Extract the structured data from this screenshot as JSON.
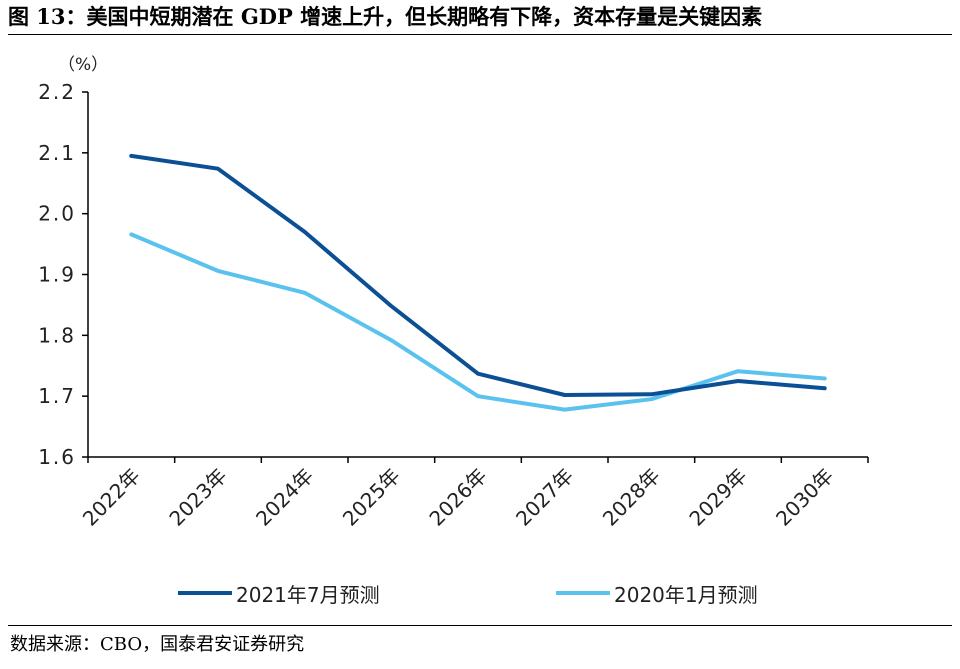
{
  "figure": {
    "title": "图 13：美国中短期潜在 GDP 增速上升，但长期略有下降，资本存量是关键因素",
    "source": "数据来源：CBO，国泰君安证券研究"
  },
  "chart_data": {
    "type": "line",
    "unit_label": "（%）",
    "categories": [
      "2022年",
      "2023年",
      "2024年",
      "2025年",
      "2026年",
      "2027年",
      "2028年",
      "2029年",
      "2030年"
    ],
    "ylim": [
      1.6,
      2.2
    ],
    "yticks": [
      "2.2",
      "2.1",
      "2.0",
      "1.9",
      "1.8",
      "1.7",
      "1.6"
    ],
    "grid": false,
    "legend_position": "bottom",
    "series": [
      {
        "name": "2021年7月预测",
        "color": "#0B4F95",
        "values": [
          2.095,
          2.074,
          1.97,
          1.848,
          1.737,
          1.702,
          1.703,
          1.725,
          1.713
        ]
      },
      {
        "name": "2020年1月预测",
        "color": "#5AC2EE",
        "values": [
          1.966,
          1.906,
          1.87,
          1.792,
          1.7,
          1.678,
          1.695,
          1.741,
          1.729
        ]
      }
    ]
  }
}
